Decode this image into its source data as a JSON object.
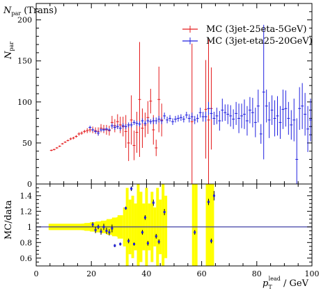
{
  "title": "N_par (Trans)",
  "title_main": "N",
  "title_sub": "par",
  "title_rest": " (Trans)",
  "main_ylabel_main": "N",
  "main_ylabel_sub": "par",
  "ratio_ylabel": "MC/data",
  "xlabel_main": "p",
  "xlabel_sub": "T",
  "xlabel_sup": "lead",
  "xlabel_rest": " / GeV",
  "colors": {
    "red": "#e41a1c",
    "blue": "#1f1fe0",
    "band": "#ffff00",
    "line": "#2c2c9c"
  },
  "chart_data": [
    {
      "type": "scatter",
      "panel": "main",
      "title": "N_par (Trans)",
      "xlim": [
        0,
        100
      ],
      "ylim": [
        0,
        220
      ],
      "xticks": [
        0,
        20,
        40,
        60,
        80,
        100
      ],
      "xtick_labels_visible": false,
      "yticks": [
        0,
        50,
        100,
        150,
        200
      ],
      "ylabel": "N_par",
      "legend_placement": "top-right",
      "series": [
        {
          "name": "MC (3jet-25eta-5GeV)",
          "color": "#e41a1c",
          "points": [
            [
              5.5,
              41,
              1
            ],
            [
              6.5,
              42,
              1
            ],
            [
              7.5,
              44,
              1
            ],
            [
              8.5,
              46,
              1
            ],
            [
              9.5,
              49,
              1
            ],
            [
              10.5,
              51,
              1
            ],
            [
              11.5,
              53,
              1
            ],
            [
              12.5,
              55,
              1.5
            ],
            [
              13.5,
              56,
              1.5
            ],
            [
              14.5,
              58,
              1.5
            ],
            [
              15.5,
              61,
              2
            ],
            [
              16.5,
              62,
              2
            ],
            [
              17.5,
              64,
              2
            ],
            [
              18.5,
              65,
              3
            ],
            [
              19.5,
              66,
              3
            ],
            [
              20.5,
              66,
              4
            ],
            [
              21.5,
              65,
              4
            ],
            [
              22.5,
              64,
              5
            ],
            [
              23.5,
              68,
              5
            ],
            [
              24.5,
              67,
              5
            ],
            [
              25.5,
              66,
              6
            ],
            [
              26.5,
              65,
              6
            ],
            [
              27.5,
              75,
              8
            ],
            [
              28.5,
              71,
              8
            ],
            [
              29.5,
              76,
              9
            ],
            [
              30.5,
              72,
              10
            ],
            [
              31.5,
              70,
              12
            ],
            [
              32.5,
              64,
              20
            ],
            [
              33.5,
              50,
              22
            ],
            [
              34.5,
              78,
              30
            ],
            [
              35.5,
              47,
              18
            ],
            [
              36.5,
              63,
              25
            ],
            [
              37.5,
              103,
              70
            ],
            [
              38.5,
              68,
              24
            ],
            [
              39.5,
              72,
              15
            ],
            [
              40.5,
              81,
              20
            ],
            [
              41.5,
              101,
              15
            ],
            [
              42.5,
              66,
              18
            ],
            [
              43.5,
              44,
              10
            ],
            [
              44.5,
              103,
              40
            ],
            [
              45.5,
              78,
              20
            ],
            [
              56.5,
              76,
              95
            ],
            [
              61.5,
              91,
              60
            ],
            [
              62.5,
              78,
              98
            ],
            [
              63.5,
              92,
              50
            ]
          ]
        },
        {
          "name": "MC (3jet-eta25-20GeV)",
          "color": "#1f1fe0",
          "points": [
            [
              19.5,
              69,
              2
            ],
            [
              20.5,
              66,
              2
            ],
            [
              21.5,
              64,
              2
            ],
            [
              22.5,
              62,
              3
            ],
            [
              23.5,
              66,
              2
            ],
            [
              24.5,
              66,
              2
            ],
            [
              25.5,
              67,
              2
            ],
            [
              26.5,
              66,
              2
            ],
            [
              27.5,
              71,
              3
            ],
            [
              28.5,
              69,
              3
            ],
            [
              29.5,
              70,
              3
            ],
            [
              30.5,
              68,
              3
            ],
            [
              31.5,
              71,
              3
            ],
            [
              32.5,
              70,
              3
            ],
            [
              33.5,
              72,
              3
            ],
            [
              34.5,
              72,
              3
            ],
            [
              35.5,
              75,
              3
            ],
            [
              36.5,
              74,
              3
            ],
            [
              37.5,
              73,
              3
            ],
            [
              38.5,
              77,
              3
            ],
            [
              39.5,
              74,
              3
            ],
            [
              40.5,
              77,
              3
            ],
            [
              41.5,
              76,
              3
            ],
            [
              42.5,
              77,
              4
            ],
            [
              43.5,
              77,
              4
            ],
            [
              44.5,
              79,
              4
            ],
            [
              45.5,
              77,
              4
            ],
            [
              46.5,
              83,
              4
            ],
            [
              47.5,
              78,
              4
            ],
            [
              48.5,
              80,
              4
            ],
            [
              49.5,
              76,
              4
            ],
            [
              50.5,
              79,
              4
            ],
            [
              51.5,
              80,
              4
            ],
            [
              52.5,
              81,
              4
            ],
            [
              53.5,
              79,
              4
            ],
            [
              54.5,
              84,
              4
            ],
            [
              55.5,
              80,
              5
            ],
            [
              56.5,
              82,
              5
            ],
            [
              57.5,
              78,
              5
            ],
            [
              58.5,
              80,
              5
            ],
            [
              59.5,
              87,
              6
            ],
            [
              60.5,
              82,
              6
            ],
            [
              61.5,
              82,
              6
            ],
            [
              62.5,
              92,
              8
            ],
            [
              63.5,
              86,
              7
            ],
            [
              64.5,
              80,
              8
            ],
            [
              65.5,
              83,
              10
            ],
            [
              66.5,
              77,
              12
            ],
            [
              67.5,
              90,
              14
            ],
            [
              68.5,
              87,
              10
            ],
            [
              69.5,
              85,
              12
            ],
            [
              70.5,
              83,
              13
            ],
            [
              71.5,
              79,
              12
            ],
            [
              72.5,
              86,
              14
            ],
            [
              73.5,
              80,
              18
            ],
            [
              74.5,
              83,
              15
            ],
            [
              75.5,
              85,
              18
            ],
            [
              76.5,
              77,
              18
            ],
            [
              77.5,
              90,
              16
            ],
            [
              78.5,
              87,
              18
            ],
            [
              79.5,
              75,
              18
            ],
            [
              80.5,
              95,
              20
            ],
            [
              81.5,
              61,
              12
            ],
            [
              82.5,
              112,
              82
            ],
            [
              83.5,
              95,
              20
            ],
            [
              84.5,
              78,
              22
            ],
            [
              85.5,
              90,
              18
            ],
            [
              86.5,
              80,
              22
            ],
            [
              87.5,
              83,
              24
            ],
            [
              88.5,
              75,
              20
            ],
            [
              89.5,
              91,
              24
            ],
            [
              90.5,
              92,
              22
            ],
            [
              91.5,
              80,
              20
            ],
            [
              92.5,
              72,
              18
            ],
            [
              93.5,
              78,
              26
            ],
            [
              94.5,
              30,
              50
            ],
            [
              95.5,
              92,
              26
            ],
            [
              96.5,
              95,
              28
            ],
            [
              97.5,
              85,
              26
            ],
            [
              98.5,
              67,
              28
            ],
            [
              99.5,
              78,
              26
            ]
          ]
        }
      ]
    },
    {
      "type": "scatter",
      "panel": "ratio",
      "xlim": [
        0,
        100
      ],
      "ylim": [
        0.5,
        1.55
      ],
      "xticks": [
        0,
        20,
        40,
        60,
        80,
        100
      ],
      "yticks": [
        0.6,
        0.8,
        1,
        1.2,
        1.4
      ],
      "ylabel": "MC/data",
      "xlabel": "p_T^lead / GeV",
      "reference_line": 1,
      "band": [
        [
          5,
          0.04
        ],
        [
          10,
          0.04
        ],
        [
          15,
          0.04
        ],
        [
          18,
          0.05
        ],
        [
          20,
          0.06
        ],
        [
          22,
          0.07
        ],
        [
          24,
          0.08
        ],
        [
          26,
          0.1
        ],
        [
          28,
          0.12
        ],
        [
          30,
          0.15
        ],
        [
          32,
          0.25
        ],
        [
          33,
          0.5
        ],
        [
          34,
          0.35
        ],
        [
          35,
          0.4
        ],
        [
          36,
          0.3
        ],
        [
          37,
          0.6
        ],
        [
          38,
          0.45
        ],
        [
          39,
          0.3
        ],
        [
          40,
          0.5
        ],
        [
          41,
          0.3
        ],
        [
          42,
          0.45
        ],
        [
          43,
          0.25
        ],
        [
          44,
          0.5
        ],
        [
          45,
          0.35
        ],
        [
          46,
          0.6
        ],
        [
          47,
          0.4
        ],
        [
          48,
          0.0
        ],
        [
          56,
          0.0
        ],
        [
          57,
          0.6
        ],
        [
          58,
          0.6
        ],
        [
          59,
          0.0
        ],
        [
          61,
          0.0
        ],
        [
          62,
          0.6
        ],
        [
          63,
          0.6
        ],
        [
          64,
          0.6
        ],
        [
          65,
          0.0
        ]
      ],
      "points": [
        [
          20.5,
          1.03,
          0.03
        ],
        [
          21.5,
          0.96,
          0.04
        ],
        [
          22.5,
          1.0,
          0.03
        ],
        [
          23.5,
          0.94,
          0.04
        ],
        [
          24.5,
          1.0,
          0.04
        ],
        [
          25.5,
          0.95,
          0.04
        ],
        [
          26.5,
          0.93,
          0.04
        ],
        [
          27.5,
          0.98,
          0.05
        ],
        [
          28.5,
          0.76,
          0.02
        ],
        [
          30.5,
          0.78,
          0.02
        ],
        [
          32.5,
          1.24,
          0.02
        ],
        [
          33.5,
          0.82,
          0.03
        ],
        [
          34.5,
          1.49,
          0.03
        ],
        [
          35.5,
          0.78,
          0.02
        ],
        [
          38.5,
          0.93,
          0.03
        ],
        [
          39.5,
          1.12,
          0.03
        ],
        [
          40.5,
          0.79,
          0.03
        ],
        [
          42.5,
          1.31,
          0.04
        ],
        [
          43.5,
          0.88,
          0.03
        ],
        [
          44.5,
          0.81,
          0.03
        ],
        [
          46.5,
          1.19,
          0.04
        ],
        [
          57.5,
          0.93,
          0.03
        ],
        [
          62.5,
          1.32,
          0.04
        ],
        [
          63.5,
          0.82,
          0.03
        ],
        [
          64.5,
          1.4,
          0.06
        ]
      ]
    }
  ]
}
